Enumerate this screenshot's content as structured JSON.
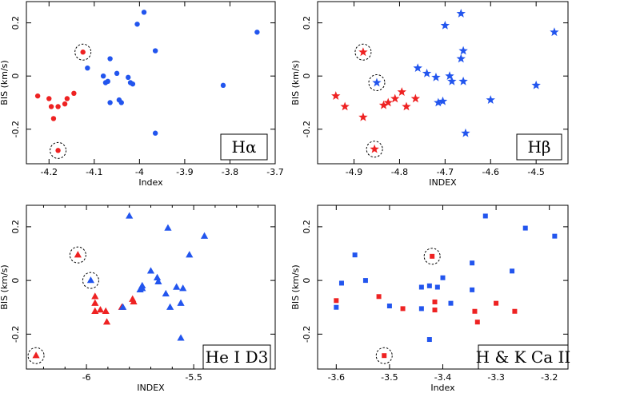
{
  "colors": {
    "red": "#ee2222",
    "blue": "#2255ee",
    "axis": "#000000"
  },
  "chart_data": [
    {
      "type": "scatter",
      "label": "Hα",
      "marker": "circle",
      "xlabel": "Index",
      "ylabel": "BIS (km/s)",
      "xlim": [
        -4.25,
        -3.7
      ],
      "ylim": [
        -0.33,
        0.28
      ],
      "x_ticks": [
        -4.2,
        -4.1,
        -4.0,
        -3.9,
        -3.8,
        -3.7
      ],
      "x_tick_labels": [
        "-4.2",
        "-4.1",
        "-4",
        "-3.9",
        "-3.8",
        "-3.7"
      ],
      "y_ticks": [
        -0.2,
        0,
        0.2
      ],
      "y_tick_labels": [
        "-0.2",
        "0",
        "0.2"
      ],
      "series": [
        {
          "color": "red",
          "points": [
            [
              -4.225,
              -0.075
            ],
            [
              -4.2,
              -0.085
            ],
            [
              -4.195,
              -0.115
            ],
            [
              -4.18,
              -0.115
            ],
            [
              -4.165,
              -0.105
            ],
            [
              -4.16,
              -0.085
            ],
            [
              -4.145,
              -0.065
            ],
            [
              -4.19,
              -0.16
            ],
            [
              -4.125,
              0.09
            ],
            [
              -4.18,
              -0.28
            ]
          ]
        },
        {
          "color": "blue",
          "points": [
            [
              -4.115,
              0.03
            ],
            [
              -4.08,
              0.0
            ],
            [
              -4.075,
              -0.025
            ],
            [
              -4.07,
              -0.02
            ],
            [
              -4.065,
              0.065
            ],
            [
              -4.05,
              0.01
            ],
            [
              -4.045,
              -0.09
            ],
            [
              -4.04,
              -0.1
            ],
            [
              -4.025,
              -0.005
            ],
            [
              -4.02,
              -0.025
            ],
            [
              -4.015,
              -0.03
            ],
            [
              -4.065,
              -0.1
            ],
            [
              -4.005,
              0.195
            ],
            [
              -3.99,
              0.24
            ],
            [
              -3.965,
              0.095
            ],
            [
              -3.965,
              -0.215
            ],
            [
              -3.815,
              -0.035
            ],
            [
              -3.74,
              0.165
            ]
          ]
        }
      ],
      "highlighted_points": [
        [
          -4.125,
          0.09
        ],
        [
          -4.18,
          -0.28
        ]
      ]
    },
    {
      "type": "scatter",
      "label": "Hβ",
      "marker": "star",
      "xlabel": "INDEX",
      "ylabel": "BIS (km/s)",
      "xlim": [
        -4.98,
        -4.43
      ],
      "ylim": [
        -0.33,
        0.28
      ],
      "x_ticks": [
        -4.9,
        -4.8,
        -4.7,
        -4.6,
        -4.5
      ],
      "x_tick_labels": [
        "-4.9",
        "-4.8",
        "-4.7",
        "-4.6",
        "-4.5"
      ],
      "y_ticks": [
        -0.2,
        0,
        0.2
      ],
      "y_tick_labels": [
        "-0.2",
        "0",
        "0.2"
      ],
      "series": [
        {
          "color": "red",
          "points": [
            [
              -4.94,
              -0.075
            ],
            [
              -4.92,
              -0.115
            ],
            [
              -4.88,
              -0.155
            ],
            [
              -4.835,
              -0.11
            ],
            [
              -4.825,
              -0.1
            ],
            [
              -4.81,
              -0.085
            ],
            [
              -4.795,
              -0.06
            ],
            [
              -4.785,
              -0.115
            ],
            [
              -4.765,
              -0.085
            ],
            [
              -4.88,
              0.09
            ],
            [
              -4.855,
              -0.275
            ]
          ]
        },
        {
          "color": "blue",
          "points": [
            [
              -4.85,
              -0.025
            ],
            [
              -4.76,
              0.03
            ],
            [
              -4.74,
              0.01
            ],
            [
              -4.72,
              -0.005
            ],
            [
              -4.715,
              -0.1
            ],
            [
              -4.705,
              -0.095
            ],
            [
              -4.69,
              0.0
            ],
            [
              -4.685,
              -0.02
            ],
            [
              -4.665,
              0.065
            ],
            [
              -4.665,
              0.235
            ],
            [
              -4.66,
              0.095
            ],
            [
              -4.66,
              -0.02
            ],
            [
              -4.7,
              0.19
            ],
            [
              -4.655,
              -0.215
            ],
            [
              -4.6,
              -0.09
            ],
            [
              -4.5,
              -0.035
            ],
            [
              -4.46,
              0.165
            ]
          ]
        }
      ],
      "highlighted_points": [
        [
          -4.88,
          0.09
        ],
        [
          -4.85,
          -0.025
        ],
        [
          -4.855,
          -0.275
        ]
      ]
    },
    {
      "type": "scatter",
      "label": "He I D3",
      "marker": "triangle",
      "xlabel": "INDEX",
      "ylabel": "BIS (km/s)",
      "xlim": [
        -6.28,
        -5.12
      ],
      "ylim": [
        -0.33,
        0.28
      ],
      "x_ticks": [
        -6.0,
        -5.5
      ],
      "x_tick_labels": [
        "-6",
        "-5.5"
      ],
      "minor_x_ticks": [
        -6.2,
        -6.1,
        -5.9,
        -5.8,
        -5.7,
        -5.6,
        -5.4,
        -5.3,
        -5.2
      ],
      "y_ticks": [
        -0.2,
        0,
        0.2
      ],
      "y_tick_labels": [
        "-0.2",
        "0",
        "0.2"
      ],
      "series": [
        {
          "color": "red",
          "points": [
            [
              -5.96,
              -0.06
            ],
            [
              -5.96,
              -0.085
            ],
            [
              -5.96,
              -0.115
            ],
            [
              -5.935,
              -0.11
            ],
            [
              -5.91,
              -0.115
            ],
            [
              -5.905,
              -0.155
            ],
            [
              -5.835,
              -0.1
            ],
            [
              -5.785,
              -0.07
            ],
            [
              -5.78,
              -0.08
            ],
            [
              -6.04,
              0.095
            ],
            [
              -6.235,
              -0.28
            ]
          ]
        },
        {
          "color": "blue",
          "points": [
            [
              -5.98,
              0.0
            ],
            [
              -5.83,
              -0.1
            ],
            [
              -5.8,
              0.24
            ],
            [
              -5.75,
              -0.035
            ],
            [
              -5.74,
              -0.02
            ],
            [
              -5.74,
              -0.03
            ],
            [
              -5.7,
              0.035
            ],
            [
              -5.67,
              0.01
            ],
            [
              -5.665,
              -0.005
            ],
            [
              -5.63,
              -0.05
            ],
            [
              -5.62,
              0.195
            ],
            [
              -5.61,
              -0.1
            ],
            [
              -5.58,
              -0.025
            ],
            [
              -5.56,
              -0.085
            ],
            [
              -5.56,
              -0.215
            ],
            [
              -5.55,
              -0.03
            ],
            [
              -5.52,
              0.095
            ],
            [
              -5.45,
              0.165
            ]
          ]
        }
      ],
      "highlighted_points": [
        [
          -6.04,
          0.095
        ],
        [
          -5.98,
          0.0
        ],
        [
          -6.235,
          -0.28
        ]
      ]
    },
    {
      "type": "scatter",
      "label": "H & K Ca II",
      "marker": "square",
      "xlabel": "Index",
      "ylabel": "BIS (km/s)",
      "xlim": [
        -3.635,
        -3.165
      ],
      "ylim": [
        -0.33,
        0.28
      ],
      "x_ticks": [
        -3.6,
        -3.5,
        -3.4,
        -3.3,
        -3.2
      ],
      "x_tick_labels": [
        "-3.6",
        "-3.5",
        "-3.4",
        "-3.3",
        "-3.2"
      ],
      "y_ticks": [
        -0.2,
        0,
        0.2
      ],
      "y_tick_labels": [
        "-0.2",
        "0",
        "0.2"
      ],
      "series": [
        {
          "color": "red",
          "points": [
            [
              -3.6,
              -0.075
            ],
            [
              -3.52,
              -0.06
            ],
            [
              -3.475,
              -0.105
            ],
            [
              -3.415,
              -0.08
            ],
            [
              -3.415,
              -0.11
            ],
            [
              -3.34,
              -0.115
            ],
            [
              -3.335,
              -0.155
            ],
            [
              -3.3,
              -0.085
            ],
            [
              -3.265,
              -0.115
            ],
            [
              -3.42,
              0.09
            ],
            [
              -3.51,
              -0.28
            ]
          ]
        },
        {
          "color": "blue",
          "points": [
            [
              -3.6,
              -0.1
            ],
            [
              -3.59,
              -0.01
            ],
            [
              -3.565,
              0.095
            ],
            [
              -3.545,
              0.0
            ],
            [
              -3.5,
              -0.095
            ],
            [
              -3.44,
              -0.025
            ],
            [
              -3.44,
              -0.105
            ],
            [
              -3.425,
              -0.02
            ],
            [
              -3.425,
              -0.22
            ],
            [
              -3.41,
              -0.025
            ],
            [
              -3.4,
              0.01
            ],
            [
              -3.385,
              -0.085
            ],
            [
              -3.345,
              0.065
            ],
            [
              -3.345,
              -0.035
            ],
            [
              -3.32,
              0.24
            ],
            [
              -3.27,
              0.035
            ],
            [
              -3.245,
              0.195
            ],
            [
              -3.19,
              0.165
            ]
          ]
        }
      ],
      "highlighted_points": [
        [
          -3.42,
          0.09
        ],
        [
          -3.51,
          -0.28
        ]
      ]
    }
  ]
}
